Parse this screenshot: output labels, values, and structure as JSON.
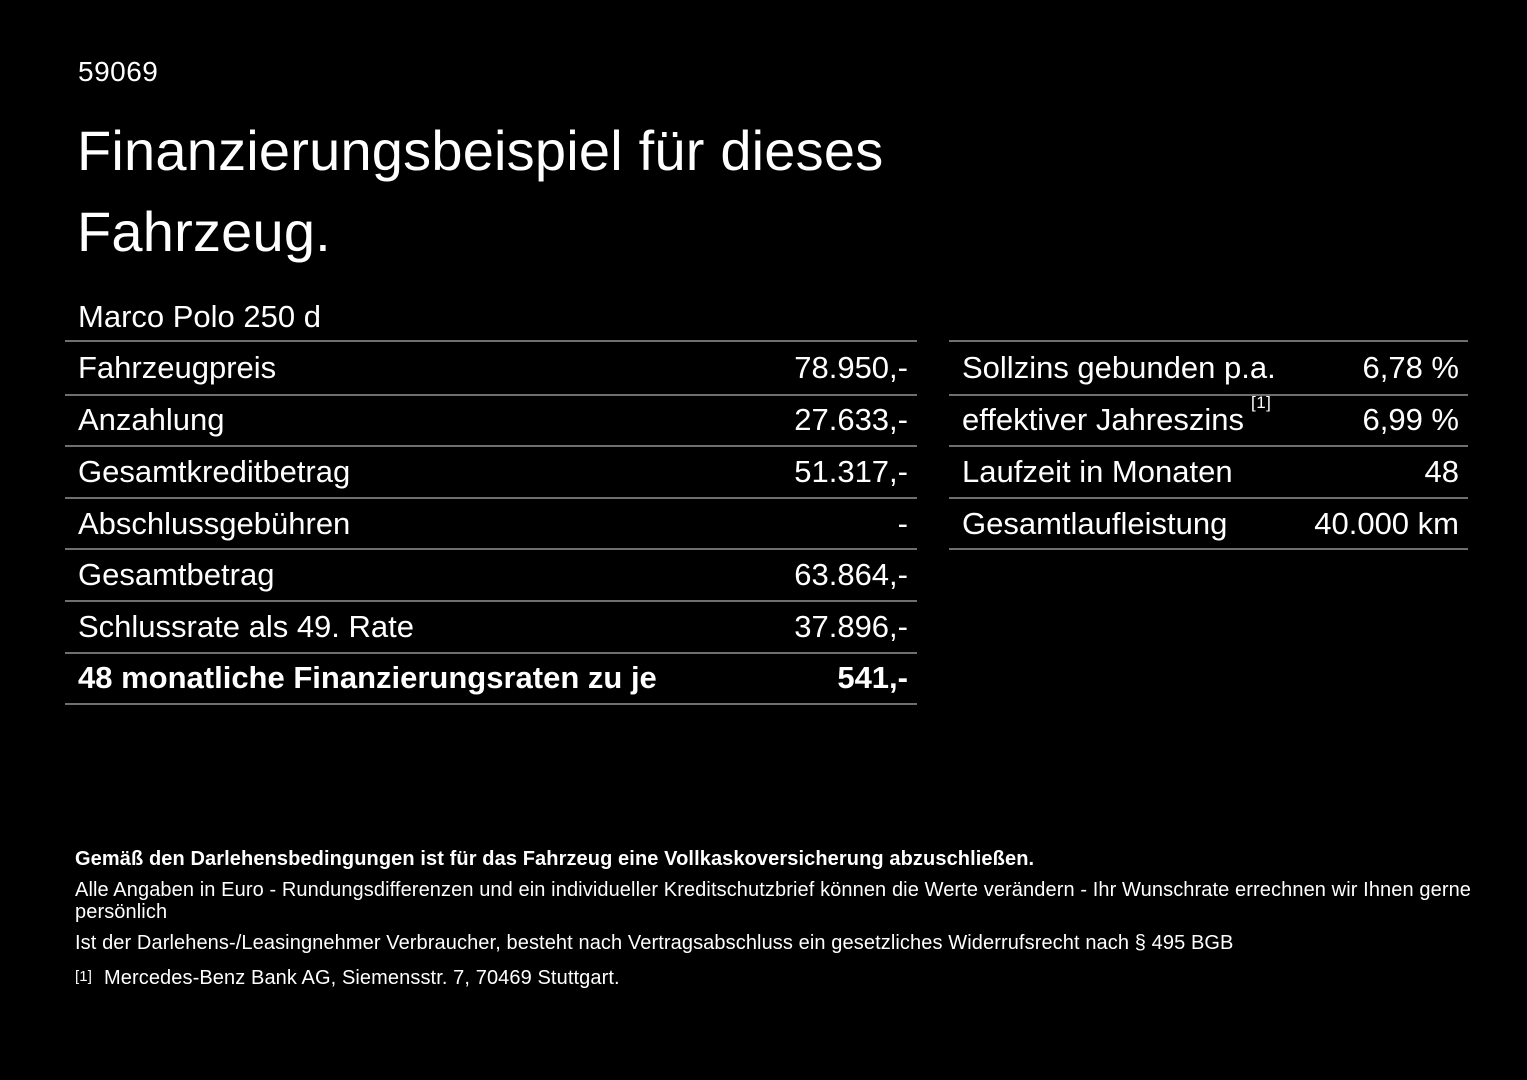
{
  "colors": {
    "background": "#000000",
    "text": "#ffffff",
    "divider": "#6f6f6f"
  },
  "header": {
    "id_number": "59069",
    "title_line1": "Finanzierungsbeispiel für dieses",
    "title_line2": "Fahrzeug.",
    "model": "Marco Polo 250 d"
  },
  "finance_table": {
    "rows": [
      {
        "label": "Fahrzeugpreis",
        "value": "78.950,-"
      },
      {
        "label": "Anzahlung",
        "value": "27.633,-"
      },
      {
        "label": "Gesamtkreditbetrag",
        "value": "51.317,-"
      },
      {
        "label": "Abschlussgebühren",
        "value": "-"
      },
      {
        "label": "Gesamtbetrag",
        "value": "63.864,-"
      },
      {
        "label": "Schlussrate als 49. Rate",
        "value": "37.896,-"
      },
      {
        "label": "48 monatliche Finanzierungsraten zu je",
        "value": "541,-"
      }
    ]
  },
  "terms_table": {
    "rows": [
      {
        "label": "Sollzins gebunden p.a.",
        "value": "6,78 %"
      },
      {
        "label": "effektiver Jahreszins",
        "footnote": "[1]",
        "value": "6,99 %"
      },
      {
        "label": "Laufzeit in Monaten",
        "value": "48"
      },
      {
        "label": "Gesamtlaufleistung",
        "value": "40.000 km"
      }
    ]
  },
  "footer": {
    "bold_line": "Gemäß den Darlehensbedingungen ist für das Fahrzeug eine Vollkaskoversicherung abzuschließen.",
    "line2": "Alle Angaben in Euro - Rundungsdifferenzen und ein individueller Kreditschutzbrief können die Werte verändern - Ihr Wunschrate errechnen wir Ihnen gerne persönlich",
    "line3": "Ist der Darlehens-/Leasingnehmer Verbraucher, besteht nach Vertragsabschluss ein gesetzliches Widerrufsrecht nach § 495 BGB",
    "footnote_marker": "[1]",
    "footnote_text": "Mercedes-Benz Bank AG, Siemensstr. 7, 70469 Stuttgart."
  }
}
